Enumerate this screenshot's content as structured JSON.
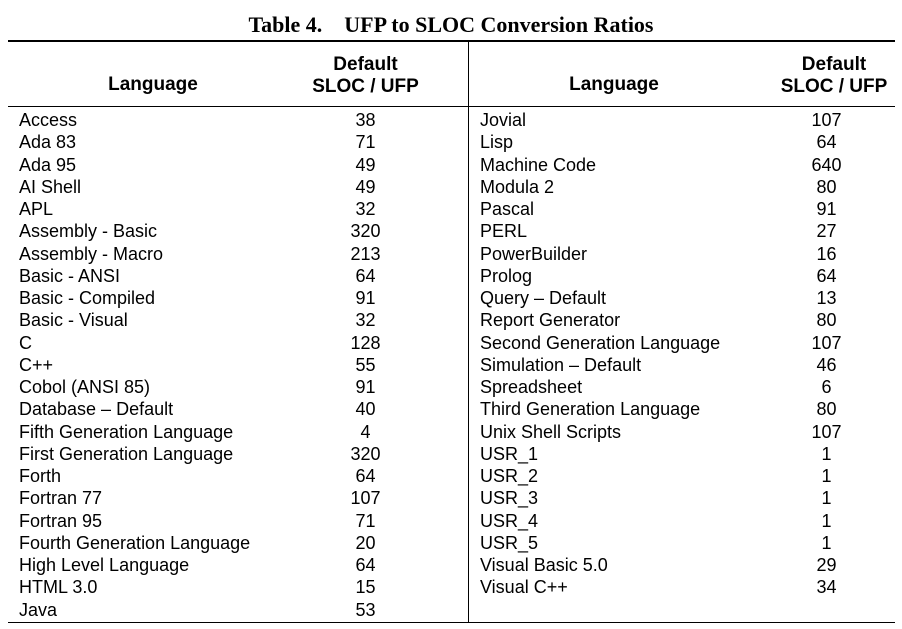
{
  "title": "Table 4.    UFP to SLOC Conversion Ratios",
  "headers": {
    "language": "Language",
    "default_line1": "Default",
    "default_line2": "SLOC / UFP"
  },
  "left_rows": [
    {
      "language": "Access",
      "ratio": "38"
    },
    {
      "language": "Ada 83",
      "ratio": "71"
    },
    {
      "language": "Ada 95",
      "ratio": "49"
    },
    {
      "language": "AI Shell",
      "ratio": "49"
    },
    {
      "language": "APL",
      "ratio": "32"
    },
    {
      "language": "Assembly - Basic",
      "ratio": "320"
    },
    {
      "language": "Assembly - Macro",
      "ratio": "213"
    },
    {
      "language": "Basic - ANSI",
      "ratio": "64"
    },
    {
      "language": "Basic - Compiled",
      "ratio": "91"
    },
    {
      "language": "Basic - Visual",
      "ratio": "32"
    },
    {
      "language": "C",
      "ratio": "128"
    },
    {
      "language": "C++",
      "ratio": "55"
    },
    {
      "language": "Cobol (ANSI 85)",
      "ratio": "91"
    },
    {
      "language": "Database – Default",
      "ratio": "40"
    },
    {
      "language": "Fifth Generation Language",
      "ratio": "4"
    },
    {
      "language": "First Generation Language",
      "ratio": "320"
    },
    {
      "language": "Forth",
      "ratio": "64"
    },
    {
      "language": "Fortran 77",
      "ratio": "107"
    },
    {
      "language": "Fortran 95",
      "ratio": "71"
    },
    {
      "language": "Fourth Generation Language",
      "ratio": "20"
    },
    {
      "language": "High Level Language",
      "ratio": "64"
    },
    {
      "language": "HTML 3.0",
      "ratio": "15"
    },
    {
      "language": "Java",
      "ratio": "53"
    }
  ],
  "right_rows": [
    {
      "language": "Jovial",
      "ratio": "107"
    },
    {
      "language": "Lisp",
      "ratio": "64"
    },
    {
      "language": "Machine Code",
      "ratio": "640"
    },
    {
      "language": "Modula 2",
      "ratio": "80"
    },
    {
      "language": "Pascal",
      "ratio": "91"
    },
    {
      "language": "PERL",
      "ratio": "27"
    },
    {
      "language": "PowerBuilder",
      "ratio": "16"
    },
    {
      "language": "Prolog",
      "ratio": "64"
    },
    {
      "language": "Query – Default",
      "ratio": "13"
    },
    {
      "language": "Report Generator",
      "ratio": "80"
    },
    {
      "language": "Second Generation Language",
      "ratio": "107"
    },
    {
      "language": "Simulation – Default",
      "ratio": "46"
    },
    {
      "language": "Spreadsheet",
      "ratio": "6"
    },
    {
      "language": "Third Generation Language",
      "ratio": "80"
    },
    {
      "language": "Unix Shell Scripts",
      "ratio": "107"
    },
    {
      "language": "USR_1",
      "ratio": "1"
    },
    {
      "language": "USR_2",
      "ratio": "1"
    },
    {
      "language": "USR_3",
      "ratio": "1"
    },
    {
      "language": "USR_4",
      "ratio": "1"
    },
    {
      "language": "USR_5",
      "ratio": "1"
    },
    {
      "language": "Visual Basic 5.0",
      "ratio": "29"
    },
    {
      "language": "Visual C++",
      "ratio": "34"
    }
  ]
}
